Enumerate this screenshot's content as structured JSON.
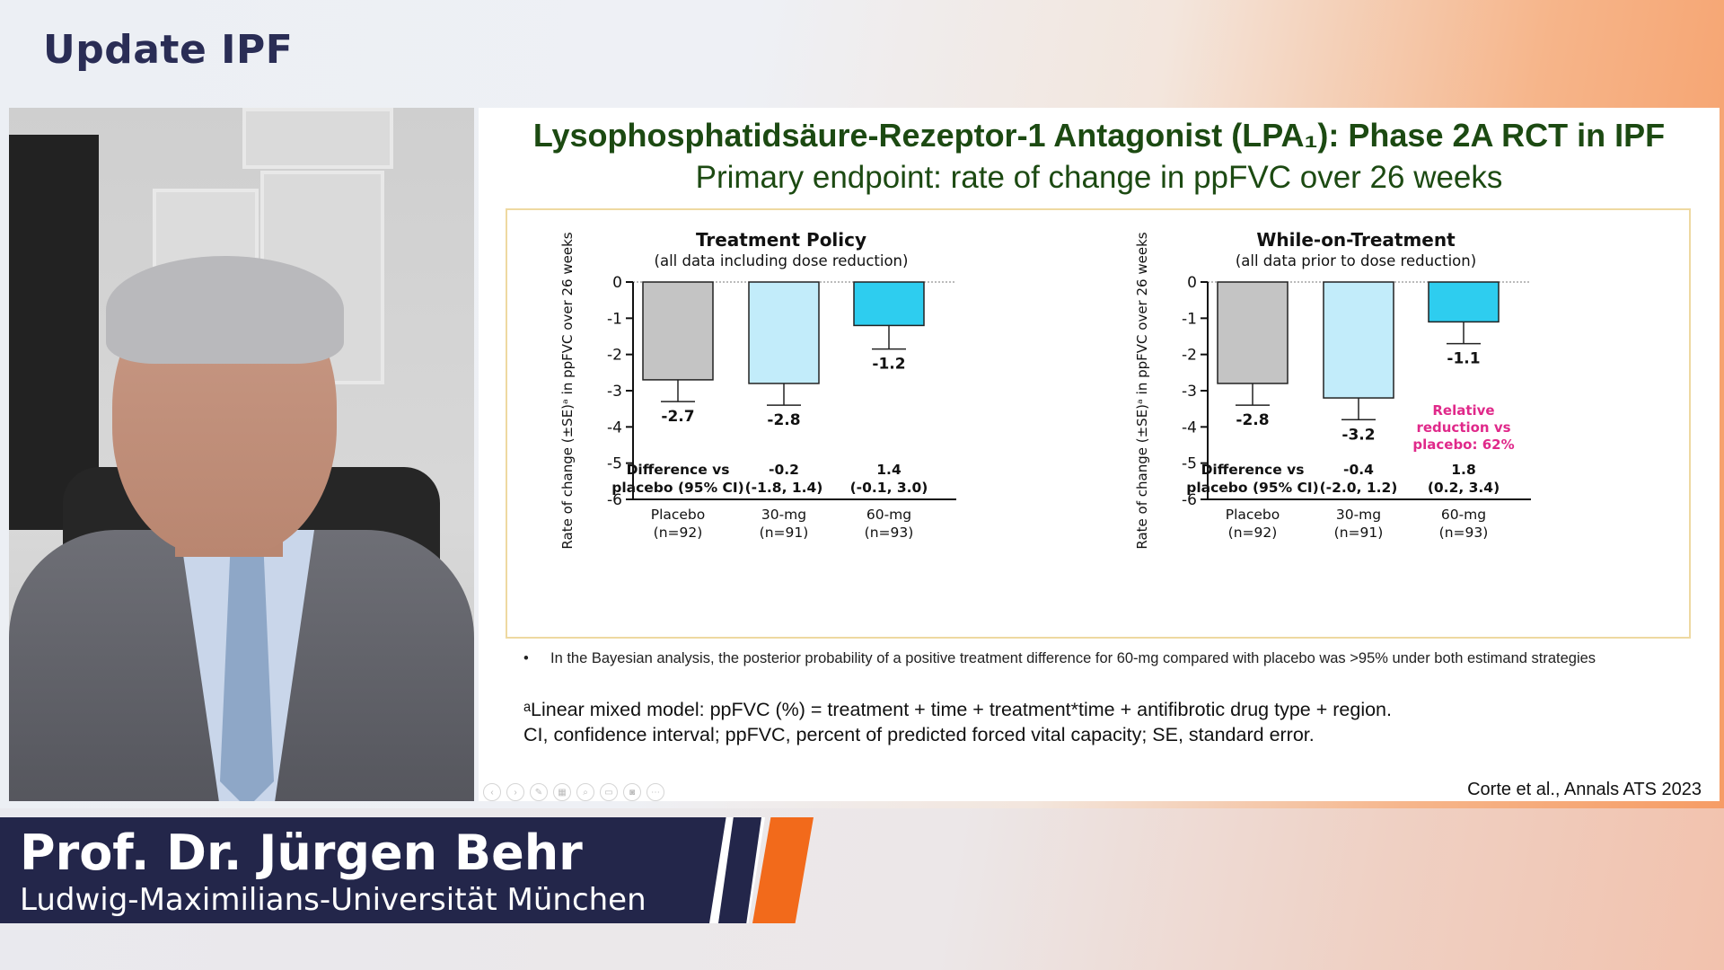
{
  "header": {
    "title": "Update IPF"
  },
  "slide": {
    "title": "Lysophosphatidsäure-Rezeptor-1 Antagonist (LPA₁): Phase 2A RCT in IPF",
    "subtitle": "Primary endpoint: rate of change in ppFVC over 26 weeks",
    "bullet": "In the Bayesian analysis, the posterior probability of a positive treatment difference for 60-mg compared with placebo was >95% under both estimand strategies",
    "footnote_line1": "ᵃLinear mixed model: ppFVC (%) = treatment + time + treatment*time + antifibrotic drug type + region.",
    "footnote_line2": "CI, confidence interval; ppFVC, percent of predicted forced vital capacity; SE, standard error.",
    "citation": "Corte et al., Annals ATS 2023"
  },
  "lower_third": {
    "name": "Prof. Dr. Jürgen Behr",
    "affiliation": "Ludwig-Maximilians-Universität München"
  },
  "chart_data": [
    {
      "type": "bar",
      "title": "Treatment Policy",
      "subtitle": "(all data including dose reduction)",
      "ylabel": "Rate of change (±SE)ᵃ in ppFVC over 26 weeks",
      "ylim": [
        -6,
        0
      ],
      "yticks": [
        "0",
        "-1",
        "-2",
        "-3",
        "-4",
        "-5",
        "-6"
      ],
      "categories": [
        "Placebo",
        "30-mg",
        "60-mg"
      ],
      "category_n": [
        "(n=92)",
        "(n=91)",
        "(n=93)"
      ],
      "values": [
        -2.7,
        -2.8,
        -1.2
      ],
      "se": [
        0.6,
        0.6,
        0.65
      ],
      "value_labels": [
        "-2.7",
        "-2.8",
        "-1.2"
      ],
      "colors": [
        "#c4c4c4",
        "#c2ecfa",
        "#2ecdef"
      ],
      "diff_header": [
        "Difference vs",
        "placebo (95% CI)"
      ],
      "diff_values": [
        [
          "-0.2",
          "(-1.8, 1.4)"
        ],
        [
          "1.4",
          "(-0.1, 3.0)"
        ]
      ],
      "annotation": ""
    },
    {
      "type": "bar",
      "title": "While-on-Treatment",
      "subtitle": "(all data prior to dose reduction)",
      "ylabel": "Rate of change (±SE)ᵃ in ppFVC over 26 weeks",
      "ylim": [
        -6,
        0
      ],
      "yticks": [
        "0",
        "-1",
        "-2",
        "-3",
        "-4",
        "-5",
        "-6"
      ],
      "categories": [
        "Placebo",
        "30-mg",
        "60-mg"
      ],
      "category_n": [
        "(n=92)",
        "(n=91)",
        "(n=93)"
      ],
      "values": [
        -2.8,
        -3.2,
        -1.1
      ],
      "se": [
        0.6,
        0.6,
        0.6
      ],
      "value_labels": [
        "-2.8",
        "-3.2",
        "-1.1"
      ],
      "colors": [
        "#c4c4c4",
        "#c2ecfa",
        "#2ecdef"
      ],
      "diff_header": [
        "Difference vs",
        "placebo (95% CI)"
      ],
      "diff_values": [
        [
          "-0.4",
          "(-2.0, 1.2)"
        ],
        [
          "1.8",
          "(0.2, 3.4)"
        ]
      ],
      "annotation": "Relative reduction vs placebo: 62%",
      "annotation_lines": [
        "Relative",
        "reduction vs",
        "placebo: 62%"
      ],
      "annotation_color": "#e0298a"
    }
  ]
}
